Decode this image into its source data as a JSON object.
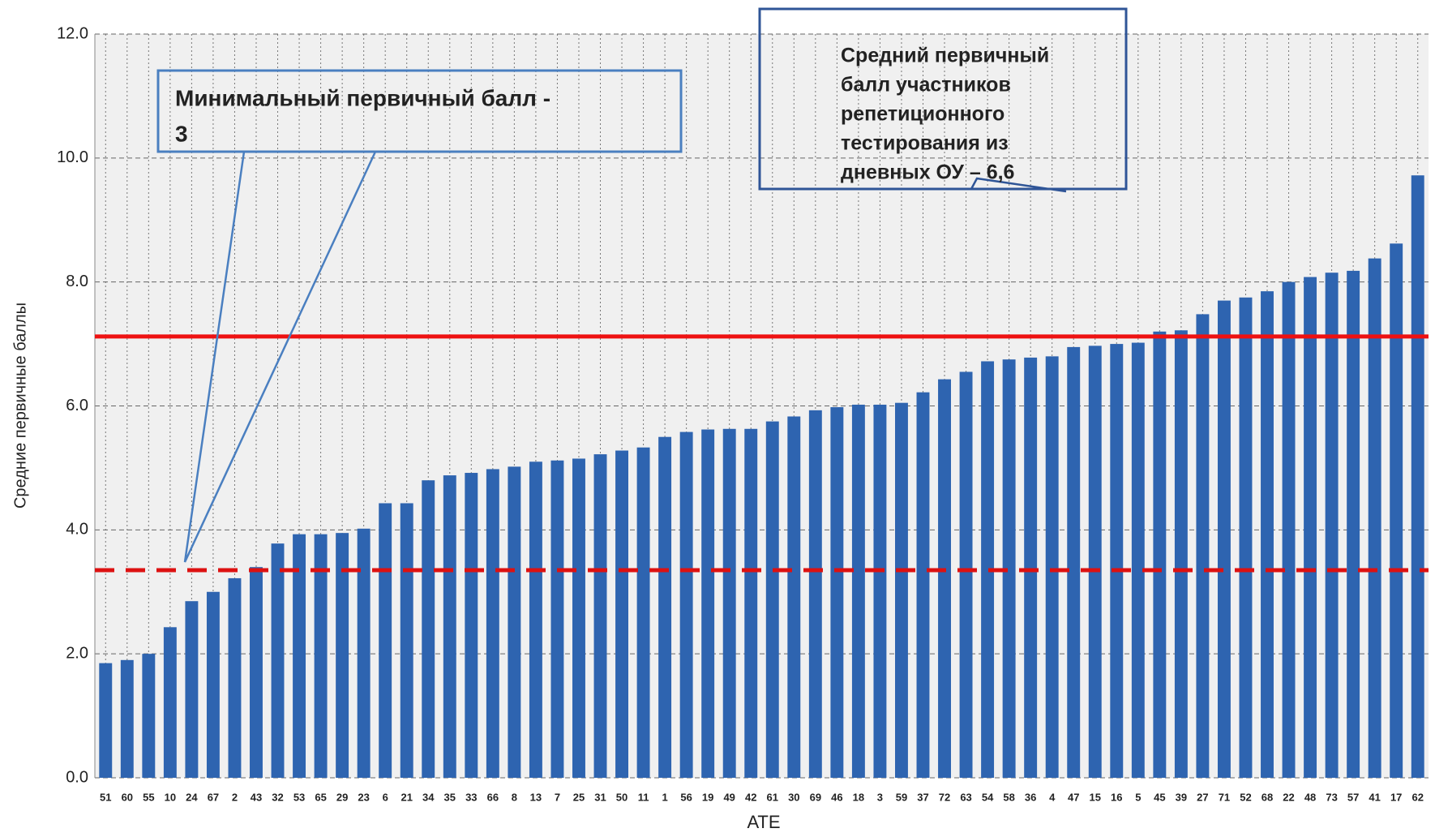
{
  "chart_data": {
    "type": "bar",
    "x_label": "АТЕ",
    "y_label": "Средние первичные баллы",
    "categories": [
      "51",
      "60",
      "55",
      "10",
      "24",
      "67",
      "2",
      "43",
      "32",
      "53",
      "65",
      "29",
      "23",
      "6",
      "21",
      "34",
      "35",
      "33",
      "66",
      "8",
      "13",
      "7",
      "25",
      "31",
      "50",
      "11",
      "1",
      "56",
      "19",
      "49",
      "42",
      "61",
      "30",
      "69",
      "46",
      "18",
      "3",
      "59",
      "37",
      "72",
      "63",
      "54",
      "58",
      "36",
      "4",
      "47",
      "15",
      "16",
      "5",
      "45",
      "39",
      "27",
      "71",
      "52",
      "68",
      "22",
      "48",
      "73",
      "57",
      "41",
      "17",
      "62"
    ],
    "values": [
      1.85,
      1.9,
      2.0,
      2.43,
      2.85,
      3.0,
      3.22,
      3.4,
      3.78,
      3.93,
      3.93,
      3.95,
      4.02,
      4.43,
      4.43,
      4.8,
      4.88,
      4.92,
      4.98,
      5.02,
      5.1,
      5.12,
      5.15,
      5.22,
      5.28,
      5.33,
      5.5,
      5.58,
      5.62,
      5.63,
      5.63,
      5.75,
      5.83,
      5.93,
      5.98,
      6.02,
      6.02,
      6.05,
      6.22,
      6.43,
      6.55,
      6.72,
      6.75,
      6.78,
      6.8,
      6.95,
      6.97,
      7.0,
      7.02,
      7.2,
      7.22,
      7.48,
      7.7,
      7.75,
      7.85,
      8.0,
      8.08,
      8.15,
      8.18,
      8.38,
      8.62,
      9.72
    ],
    "color": "#2e64b0",
    "ylim": [
      0,
      12
    ],
    "yticks": [
      {
        "value": 0,
        "label": "0.0"
      },
      {
        "value": 2,
        "label": "2.0"
      },
      {
        "value": 4,
        "label": "4.0"
      },
      {
        "value": 6,
        "label": "6.0"
      },
      {
        "value": 8,
        "label": "8.0"
      },
      {
        "value": 10,
        "label": "10.0"
      },
      {
        "value": 12,
        "label": "12.0"
      }
    ],
    "grid": true,
    "reference_lines": [
      {
        "value": 7.12,
        "style": "solid",
        "color": "#ee1111"
      },
      {
        "value": 3.35,
        "style": "dashed",
        "color": "#dd1111"
      }
    ],
    "annotations": [
      {
        "lines": [
          "Минимальный первичный балл -",
          "3"
        ]
      },
      {
        "lines": [
          "Средний первичный",
          "балл участников",
          "репетиционного",
          "тестирования из",
          "дневных ОУ – 6,6"
        ]
      }
    ]
  }
}
